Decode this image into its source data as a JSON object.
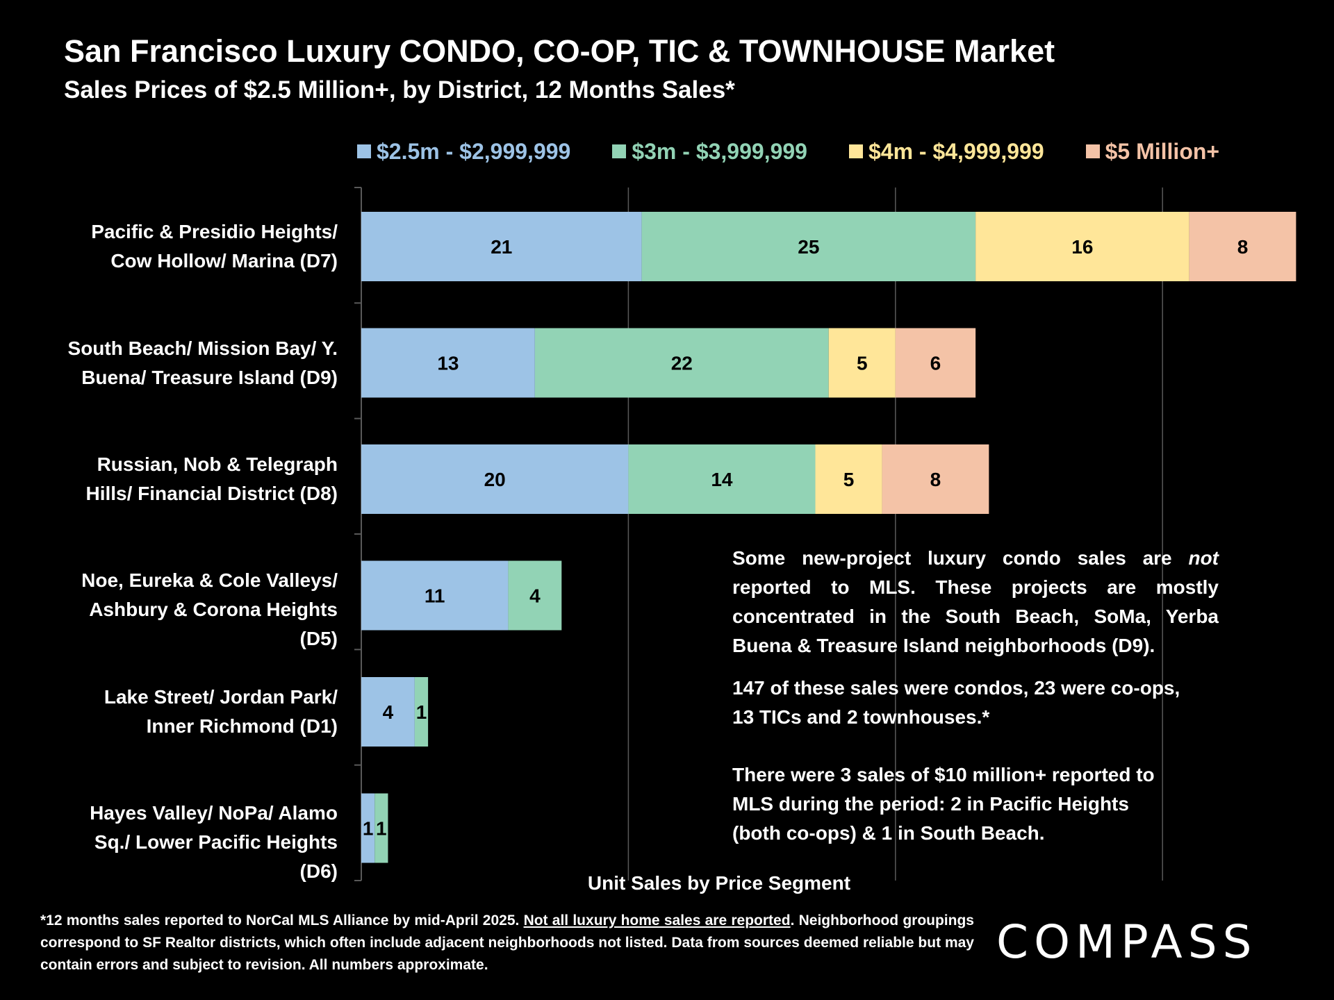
{
  "colors": {
    "background": "#000000",
    "series": [
      "#9DC3E6",
      "#92D3B5",
      "#FFE699",
      "#F4C3A7"
    ],
    "legend_text": [
      "#9DC3E6",
      "#92D3B5",
      "#FFE699",
      "#F4C3A7"
    ],
    "gridline": "#595959",
    "text": "#FFFFFF",
    "bar_label": "#000000"
  },
  "chart_data": {
    "type": "bar",
    "orientation": "horizontal",
    "stacked": true,
    "title": "San Francisco Luxury CONDO, CO-OP, TIC & TOWNHOUSE Market",
    "subtitle": "Sales Prices of $2.5 Million+, by District, 12 Months Sales*",
    "xlabel": "Unit Sales by Price Segment",
    "ylabel": "",
    "xlim": [
      0,
      70
    ],
    "gridline_step": 20,
    "grid": true,
    "legend_position": "top",
    "categories": [
      [
        "Pacific & Presidio Heights/",
        "Cow Hollow/ Marina (D7)"
      ],
      [
        "South Beach/ Mission Bay/ Y.",
        "Buena/ Treasure Island (D9)"
      ],
      [
        "Russian, Nob & Telegraph",
        "Hills/ Financial District (D8)"
      ],
      [
        "Noe, Eureka & Cole Valleys/",
        "Ashbury & Corona Heights",
        "(D5)"
      ],
      [
        "Lake Street/ Jordan Park/",
        "Inner Richmond (D1)"
      ],
      [
        "Hayes Valley/ NoPa/ Alamo",
        "Sq./ Lower Pacific Heights",
        "(D6)"
      ]
    ],
    "series": [
      {
        "name": "$2.5m - $2,999,999",
        "values": [
          21,
          13,
          20,
          11,
          4,
          1
        ]
      },
      {
        "name": "$3m - $3,999,999",
        "values": [
          25,
          22,
          14,
          4,
          1,
          1
        ]
      },
      {
        "name": "$4m - $4,999,999",
        "values": [
          16,
          5,
          5,
          0,
          0,
          0
        ]
      },
      {
        "name": "$5 Million+",
        "values": [
          8,
          6,
          8,
          0,
          0,
          0
        ]
      }
    ]
  },
  "notes": {
    "note1_before_italic": "Some new-project luxury condo sales are ",
    "note1_italic": "not",
    "note1_after_italic": " reported to MLS. These projects are mostly concentrated in the South Beach, SoMa, Yerba Buena & Treasure Island neighborhoods (D9).",
    "note2_line1": "147 of these sales were condos, 23 were co-ops,",
    "note2_line2": "13 TICs and 2 townhouses.*",
    "note3_line1": "There were 3 sales of $10 million+ reported to",
    "note3_line2": "MLS during the period:  2 in Pacific Heights",
    "note3_line3": "(both co-ops) & 1 in South Beach."
  },
  "footnote": {
    "part1": "*12 months sales reported to NorCal MLS Alliance by mid-April 2025. ",
    "underlined": "Not all luxury home sales are reported",
    "part2": ". Neighborhood groupings correspond to SF Realtor districts, which often include adjacent neighborhoods not listed. Data from sources deemed reliable but may contain errors and subject to revision. All numbers approximate."
  },
  "logo": {
    "text": "COMPASS"
  }
}
